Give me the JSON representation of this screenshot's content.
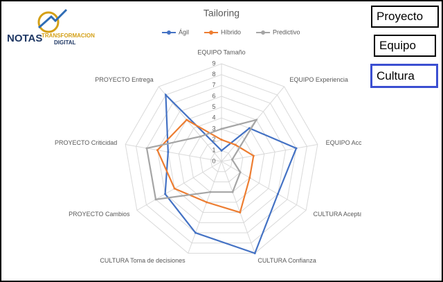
{
  "logo": {
    "main": "NOTAS",
    "line1": "TRANSFORMACION",
    "line2": "DIGITAL"
  },
  "buttons": [
    "Proyecto",
    "Equipo",
    "Cultura"
  ],
  "chart_data": {
    "type": "radar",
    "title": "Tailoring",
    "categories": [
      "EQUIPO Tamaño",
      "EQUIPO Experiencia",
      "EQUIPO Acceso",
      "CULTURA Aceptación",
      "CULTURA Confianza",
      "CULTURA Toma de decisiones",
      "PROYECTO Cambios",
      "PROYECTO Criticidad",
      "PROYECTO Entrega"
    ],
    "series": [
      {
        "name": "Ágil",
        "color": "#4472c4",
        "values": [
          1,
          4,
          7,
          6,
          9,
          7,
          6,
          5,
          8
        ]
      },
      {
        "name": "Híbrido",
        "color": "#ed7d31",
        "values": [
          2,
          2,
          3,
          3,
          5,
          4,
          5,
          6,
          5
        ]
      },
      {
        "name": "Predictivo",
        "color": "#a5a5a5",
        "values": [
          3,
          5,
          1,
          2,
          3,
          3,
          7,
          7,
          3
        ]
      }
    ],
    "rlim": [
      0,
      9
    ],
    "rticks": [
      0,
      1,
      2,
      3,
      4,
      5,
      6,
      7,
      8,
      9
    ],
    "grid": true,
    "legend": "top"
  }
}
